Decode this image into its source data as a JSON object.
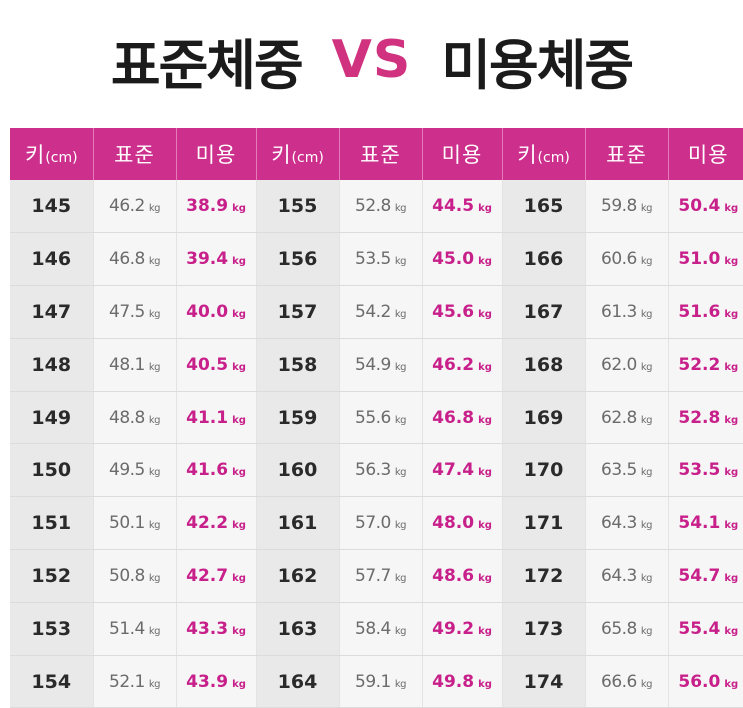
{
  "title": {
    "left": "표준체중",
    "vs": "VS",
    "right": "미용체중"
  },
  "colors": {
    "accent": "#cd2f8d",
    "beauty_text": "#c8208a",
    "vs_text": "#d1327f"
  },
  "table": {
    "headers": {
      "height": "키",
      "height_unit": "(cm)",
      "standard": "표준",
      "beauty": "미용"
    },
    "unit": "kg",
    "columns": [
      {
        "rows": [
          {
            "height": "145",
            "standard": "46.2",
            "beauty": "38.9"
          },
          {
            "height": "146",
            "standard": "46.8",
            "beauty": "39.4"
          },
          {
            "height": "147",
            "standard": "47.5",
            "beauty": "40.0"
          },
          {
            "height": "148",
            "standard": "48.1",
            "beauty": "40.5"
          },
          {
            "height": "149",
            "standard": "48.8",
            "beauty": "41.1"
          },
          {
            "height": "150",
            "standard": "49.5",
            "beauty": "41.6"
          },
          {
            "height": "151",
            "standard": "50.1",
            "beauty": "42.2"
          },
          {
            "height": "152",
            "standard": "50.8",
            "beauty": "42.7"
          },
          {
            "height": "153",
            "standard": "51.4",
            "beauty": "43.3"
          },
          {
            "height": "154",
            "standard": "52.1",
            "beauty": "43.9"
          }
        ]
      },
      {
        "rows": [
          {
            "height": "155",
            "standard": "52.8",
            "beauty": "44.5"
          },
          {
            "height": "156",
            "standard": "53.5",
            "beauty": "45.0"
          },
          {
            "height": "157",
            "standard": "54.2",
            "beauty": "45.6"
          },
          {
            "height": "158",
            "standard": "54.9",
            "beauty": "46.2"
          },
          {
            "height": "159",
            "standard": "55.6",
            "beauty": "46.8"
          },
          {
            "height": "160",
            "standard": "56.3",
            "beauty": "47.4"
          },
          {
            "height": "161",
            "standard": "57.0",
            "beauty": "48.0"
          },
          {
            "height": "162",
            "standard": "57.7",
            "beauty": "48.6"
          },
          {
            "height": "163",
            "standard": "58.4",
            "beauty": "49.2"
          },
          {
            "height": "164",
            "standard": "59.1",
            "beauty": "49.8"
          }
        ]
      },
      {
        "rows": [
          {
            "height": "165",
            "standard": "59.8",
            "beauty": "50.4"
          },
          {
            "height": "166",
            "standard": "60.6",
            "beauty": "51.0"
          },
          {
            "height": "167",
            "standard": "61.3",
            "beauty": "51.6"
          },
          {
            "height": "168",
            "standard": "62.0",
            "beauty": "52.2"
          },
          {
            "height": "169",
            "standard": "62.8",
            "beauty": "52.8"
          },
          {
            "height": "170",
            "standard": "63.5",
            "beauty": "53.5"
          },
          {
            "height": "171",
            "standard": "64.3",
            "beauty": "54.1"
          },
          {
            "height": "172",
            "standard": "64.3",
            "beauty": "54.7"
          },
          {
            "height": "173",
            "standard": "65.8",
            "beauty": "55.4"
          },
          {
            "height": "174",
            "standard": "66.6",
            "beauty": "56.0"
          }
        ]
      }
    ]
  }
}
